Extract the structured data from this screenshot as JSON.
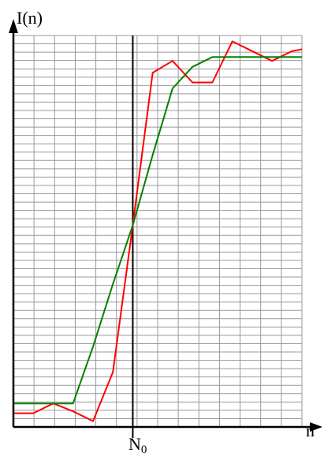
{
  "chart_data": {
    "type": "line",
    "title": "",
    "ylabel": "I(n)",
    "xlabel": "n",
    "marker_label": {
      "main": "N",
      "sub": "0"
    },
    "marker_x": 0,
    "xlim": [
      -6,
      8.5
    ],
    "ylim": [
      0,
      20
    ],
    "grid": true,
    "grid_columns": 14,
    "grid_rows": 47,
    "colors": {
      "grid": "#999999",
      "axis": "#000000",
      "marker": "#000000"
    },
    "series": [
      {
        "color": "#ff0000",
        "x": [
          -6,
          -5,
          -4,
          -3,
          -2,
          -1,
          0,
          1,
          2,
          3,
          4,
          5,
          6,
          7,
          8,
          8.5
        ],
        "y": [
          0.7,
          0.7,
          1.2,
          0.8,
          0.3,
          2.8,
          10.3,
          18.1,
          18.7,
          17.6,
          17.6,
          19.7,
          19.2,
          18.7,
          19.2,
          19.3
        ]
      },
      {
        "color": "#008000",
        "x": [
          -6,
          -5,
          -4,
          -3,
          -2,
          -1,
          0,
          1,
          2,
          3,
          4,
          5,
          6,
          7,
          8,
          8.5
        ],
        "y": [
          1.2,
          1.2,
          1.2,
          1.2,
          4.1,
          7.3,
          10.3,
          13.9,
          17.3,
          18.4,
          18.9,
          18.9,
          18.9,
          18.9,
          18.9,
          18.9
        ]
      }
    ]
  }
}
